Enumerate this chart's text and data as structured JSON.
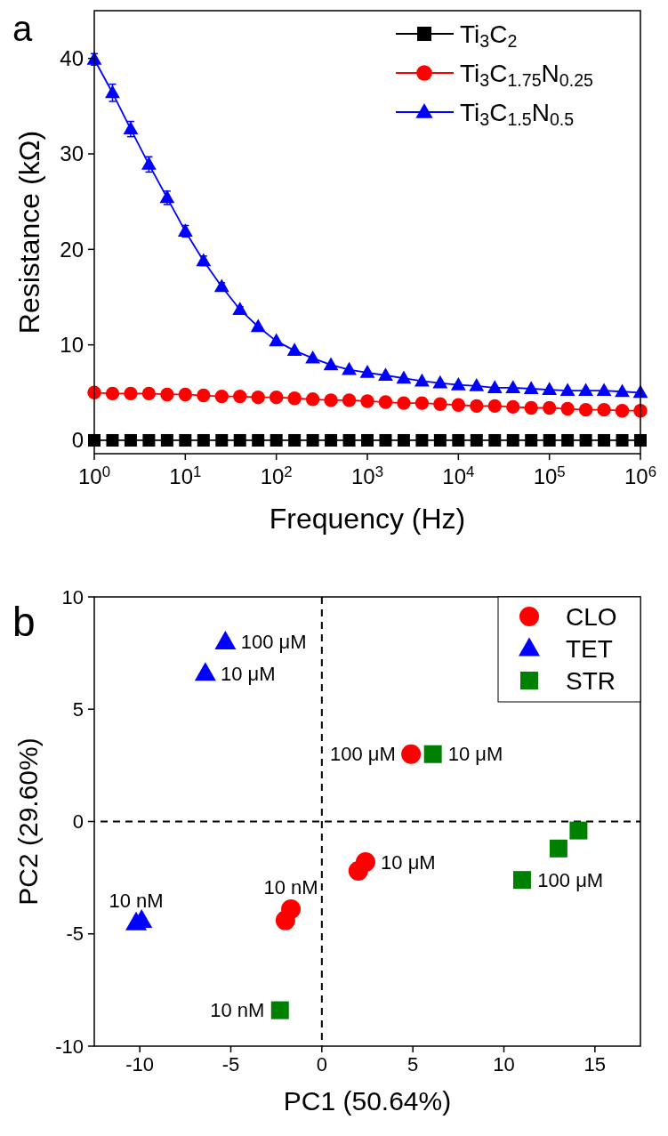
{
  "chart_data": [
    {
      "type": "line",
      "title": "a",
      "xlabel": "Frequency (Hz)",
      "ylabel": "Resistance (kΩ)",
      "log": "x",
      "xlim": [
        1,
        1000000
      ],
      "xticks": [
        {
          "value": 1,
          "label": "10$^{0}$"
        },
        {
          "value": 10,
          "label": "10$^{1}$"
        },
        {
          "value": 100,
          "label": "10$^{2}$"
        },
        {
          "value": 1000,
          "label": "10$^{3}$"
        },
        {
          "value": 10000,
          "label": "10$^{4}$"
        },
        {
          "value": 100000,
          "label": "10$^{5}$"
        },
        {
          "value": 1000000,
          "label": "10$^{6}$"
        }
      ],
      "ylim": [
        -1.4,
        45
      ],
      "yticks": [
        0,
        10,
        20,
        30,
        40
      ],
      "grid": false,
      "legend": "top right",
      "x": [
        1,
        1.585,
        2.512,
        3.981,
        6.31,
        10,
        15.85,
        25.12,
        39.81,
        63.1,
        100,
        158.5,
        251.2,
        398.1,
        631,
        1000,
        1585,
        2512,
        3981,
        6310,
        10000,
        15850,
        25120,
        39810,
        63100,
        100000,
        158500,
        251200,
        398100,
        631000,
        1000000
      ],
      "series": [
        {
          "name": "Ti$_{3}$C$_{2}$",
          "color": "#000000",
          "marker": "square",
          "values": [
            0,
            0,
            0,
            0,
            0,
            0,
            0,
            0,
            0,
            0,
            0,
            0,
            0,
            0,
            0,
            0,
            0,
            0,
            0,
            0,
            0,
            0,
            0,
            0,
            0,
            0,
            0,
            0,
            0,
            0,
            0
          ]
        },
        {
          "name": "Ti$_{3}$C$_{1.75}$N$_{0.25}$",
          "color": "#ff0000",
          "marker": "circle",
          "values": [
            5.0,
            4.9,
            4.9,
            4.9,
            4.8,
            4.8,
            4.7,
            4.6,
            4.6,
            4.5,
            4.5,
            4.4,
            4.3,
            4.2,
            4.2,
            4.1,
            4.0,
            3.9,
            3.9,
            3.8,
            3.7,
            3.6,
            3.6,
            3.5,
            3.4,
            3.4,
            3.3,
            3.2,
            3.2,
            3.1,
            3.1
          ]
        },
        {
          "name": "Ti$_{3}$C$_{1.5}$N$_{0.5}$",
          "color": "#0000ff",
          "marker": "triangle",
          "values": [
            39.9,
            36.4,
            32.6,
            28.9,
            25.4,
            21.9,
            18.8,
            16.1,
            13.7,
            11.9,
            10.4,
            9.4,
            8.6,
            7.9,
            7.4,
            7.1,
            6.8,
            6.5,
            6.2,
            6.0,
            5.8,
            5.7,
            5.5,
            5.5,
            5.4,
            5.3,
            5.2,
            5.2,
            5.2,
            5.1,
            5.0
          ],
          "errors": [
            0.6,
            0.9,
            0.8,
            0.8,
            0.7,
            0.6,
            0.5,
            0.4,
            0.3,
            null,
            null,
            null,
            null,
            null,
            null,
            null,
            null,
            null,
            null,
            null,
            null,
            null,
            null,
            null,
            null,
            null,
            null,
            null,
            null,
            null,
            null
          ]
        }
      ]
    },
    {
      "type": "scatter",
      "title": "b",
      "xlabel": "PC1 (50.64%)",
      "ylabel": "PC2 (29.60%)",
      "xlim": [
        -12.5,
        17.5
      ],
      "xticks": [
        -10,
        -5,
        0,
        5,
        10,
        15
      ],
      "ylim": [
        -10,
        10
      ],
      "yticks": [
        -10,
        -5,
        0,
        5,
        10
      ],
      "grid": false,
      "legend": "top right",
      "ref_lines": [
        {
          "axis": "x",
          "value": 0,
          "color": "#000000",
          "line_style": "dashed"
        },
        {
          "axis": "y",
          "value": 0,
          "color": "#000000",
          "line_style": "dashed"
        }
      ],
      "series": [
        {
          "name": "CLO",
          "color": "#ff0000",
          "marker": "circle",
          "x": [
            4.9,
            2.0,
            2.4,
            -2.0,
            -1.7
          ],
          "values": [
            3.0,
            -2.2,
            -1.8,
            -4.4,
            -3.9
          ]
        },
        {
          "name": "TET",
          "color": "#0000ff",
          "marker": "triangle",
          "x": [
            -5.3,
            -6.4,
            -10.2,
            -9.9
          ],
          "values": [
            8.0,
            6.6,
            -4.5,
            -4.4
          ]
        },
        {
          "name": "STR",
          "color": "#008000",
          "marker": "square",
          "x": [
            6.1,
            11.0,
            13.0,
            14.1,
            -2.3
          ],
          "values": [
            3.0,
            -2.6,
            -1.2,
            -0.4,
            -8.4
          ]
        }
      ],
      "annotations": [
        {
          "text": "100 μM",
          "x": -5.3,
          "y": 8.0
        },
        {
          "text": "10 μM",
          "x": -6.4,
          "y": 6.6
        },
        {
          "text": "10 nM",
          "x": -10.2,
          "y": -4.5
        },
        {
          "text": "100 μM",
          "x": 4.9,
          "y": 3.0
        },
        {
          "text": "10 μM",
          "x": 6.1,
          "y": 3.0
        },
        {
          "text": "10 μM",
          "x": 2.4,
          "y": -1.8
        },
        {
          "text": "100 μM",
          "x": 11.0,
          "y": -2.6
        },
        {
          "text": "10 nM",
          "x": -1.7,
          "y": -3.9
        },
        {
          "text": "10 nM",
          "x": -2.3,
          "y": -8.4
        }
      ]
    }
  ]
}
